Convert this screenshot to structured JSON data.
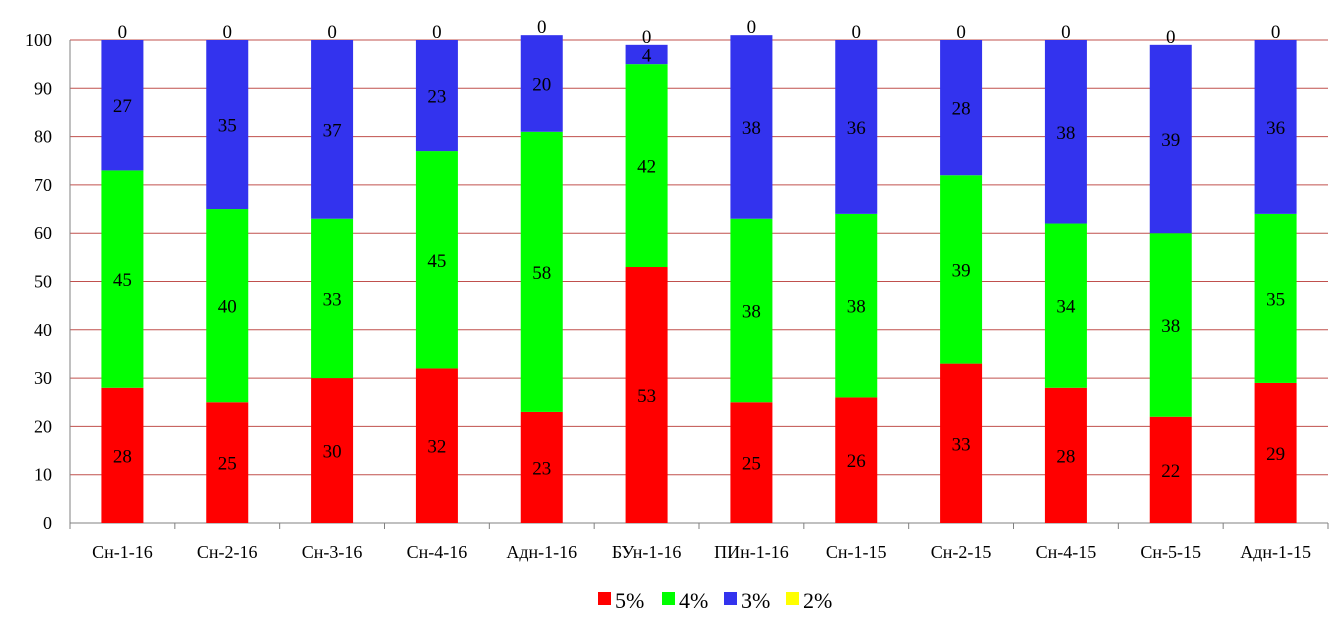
{
  "chart_data": {
    "type": "bar",
    "stacked": true,
    "categories": [
      "Сн-1-16",
      "Сн-2-16",
      "Сн-3-16",
      "Сн-4-16",
      "Адн-1-16",
      "БУн-1-16",
      "ПИн-1-16",
      "Сн-1-15",
      "Сн-2-15",
      "Сн-4-15",
      "Сн-5-15",
      "Адн-1-15"
    ],
    "series": [
      {
        "name": "5%",
        "color": "#ff0000",
        "values": [
          28,
          25,
          30,
          32,
          23,
          53,
          25,
          26,
          33,
          28,
          22,
          29
        ]
      },
      {
        "name": "4%",
        "color": "#00ff00",
        "values": [
          45,
          40,
          33,
          45,
          58,
          42,
          38,
          38,
          39,
          34,
          38,
          35
        ]
      },
      {
        "name": "3%",
        "color": "#3333ee",
        "values": [
          27,
          35,
          37,
          23,
          20,
          4,
          38,
          36,
          28,
          38,
          39,
          36
        ]
      },
      {
        "name": "2%",
        "color": "#ffff00",
        "values": [
          0,
          0,
          0,
          0,
          0,
          0,
          0,
          0,
          0,
          0,
          0,
          0
        ]
      }
    ],
    "ylim": [
      0,
      100
    ],
    "yticks": [
      "0",
      "10",
      "20",
      "30",
      "40",
      "50",
      "60",
      "70",
      "80",
      "90",
      "100"
    ],
    "grid": "horizontal",
    "legend_position": "bottom",
    "title": "",
    "xlabel": "",
    "ylabel": ""
  }
}
